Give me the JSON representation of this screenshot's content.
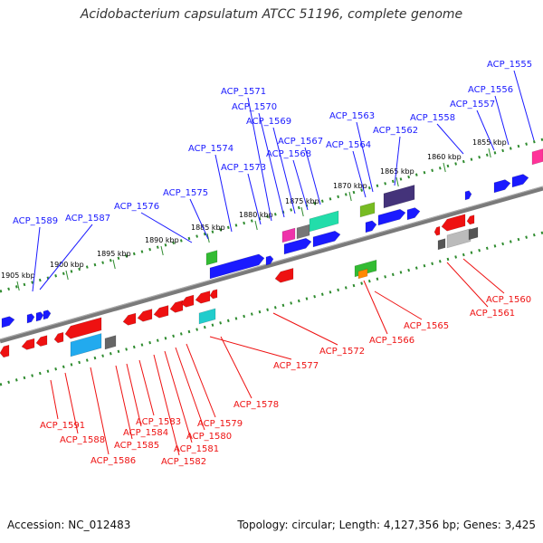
{
  "title": "Acidobacterium capsulatum ATCC 51196, complete genome",
  "footer": {
    "accession": "Accession: NC_012483",
    "topology": "Topology: circular; Length: 4,127,356 bp; Genes: 3,425"
  },
  "colors": {
    "top_label": "#1a1aff",
    "bottom_label": "#ee1111",
    "backbone": "#808080",
    "dots": "#2e8b2e"
  },
  "kbp_ticks": [
    "1905 kbp",
    "1900 kbp",
    "1895 kbp",
    "1890 kbp",
    "1885 kbp",
    "1880 kbp",
    "1875 kbp",
    "1870 kbp",
    "1865 kbp",
    "1860 kbp",
    "1855 kbp"
  ],
  "top_labels": [
    "ACP_1555",
    "ACP_1556",
    "ACP_1557",
    "ACP_1558",
    "ACP_1562",
    "ACP_1563",
    "ACP_1564",
    "ACP_1567",
    "ACP_1568",
    "ACP_1569",
    "ACP_1570",
    "ACP_1571",
    "ACP_1573",
    "ACP_1574",
    "ACP_1575",
    "ACP_1576",
    "ACP_1587",
    "ACP_1589"
  ],
  "bottom_labels": [
    "ACP_1560",
    "ACP_1561",
    "ACP_1565",
    "ACP_1566",
    "ACP_1572",
    "ACP_1577",
    "ACP_1578",
    "ACP_1579",
    "ACP_1580",
    "ACP_1581",
    "ACP_1582",
    "ACP_1583",
    "ACP_1584",
    "ACP_1585",
    "ACP_1586",
    "ACP_1588",
    "ACP_1591"
  ]
}
